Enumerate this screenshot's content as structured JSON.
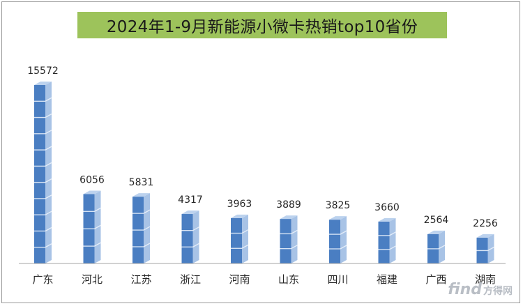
{
  "chart_data": {
    "type": "bar",
    "title": "2024年1-9月新能源小微卡热销top10省份",
    "categories": [
      "广东",
      "河北",
      "江苏",
      "浙江",
      "河南",
      "山东",
      "四川",
      "福建",
      "广西",
      "湖南"
    ],
    "values": [
      15572,
      6056,
      5831,
      4317,
      3963,
      3889,
      3825,
      3660,
      2564,
      2256
    ],
    "xlabel": "",
    "ylabel": "",
    "ylim": [
      0,
      17000
    ],
    "grid": false,
    "legend": "none",
    "bar_style": "stacked 3D cubes"
  },
  "colors": {
    "title_background": "#9dc35b",
    "cube_front": "#4a7ec2",
    "cube_side": "#a8c3e6",
    "cube_top": "#bcd2ee",
    "axis": "#a6a6a6",
    "watermark": "#b9bec5"
  },
  "watermark": {
    "logo": "find",
    "text": "方得网"
  }
}
